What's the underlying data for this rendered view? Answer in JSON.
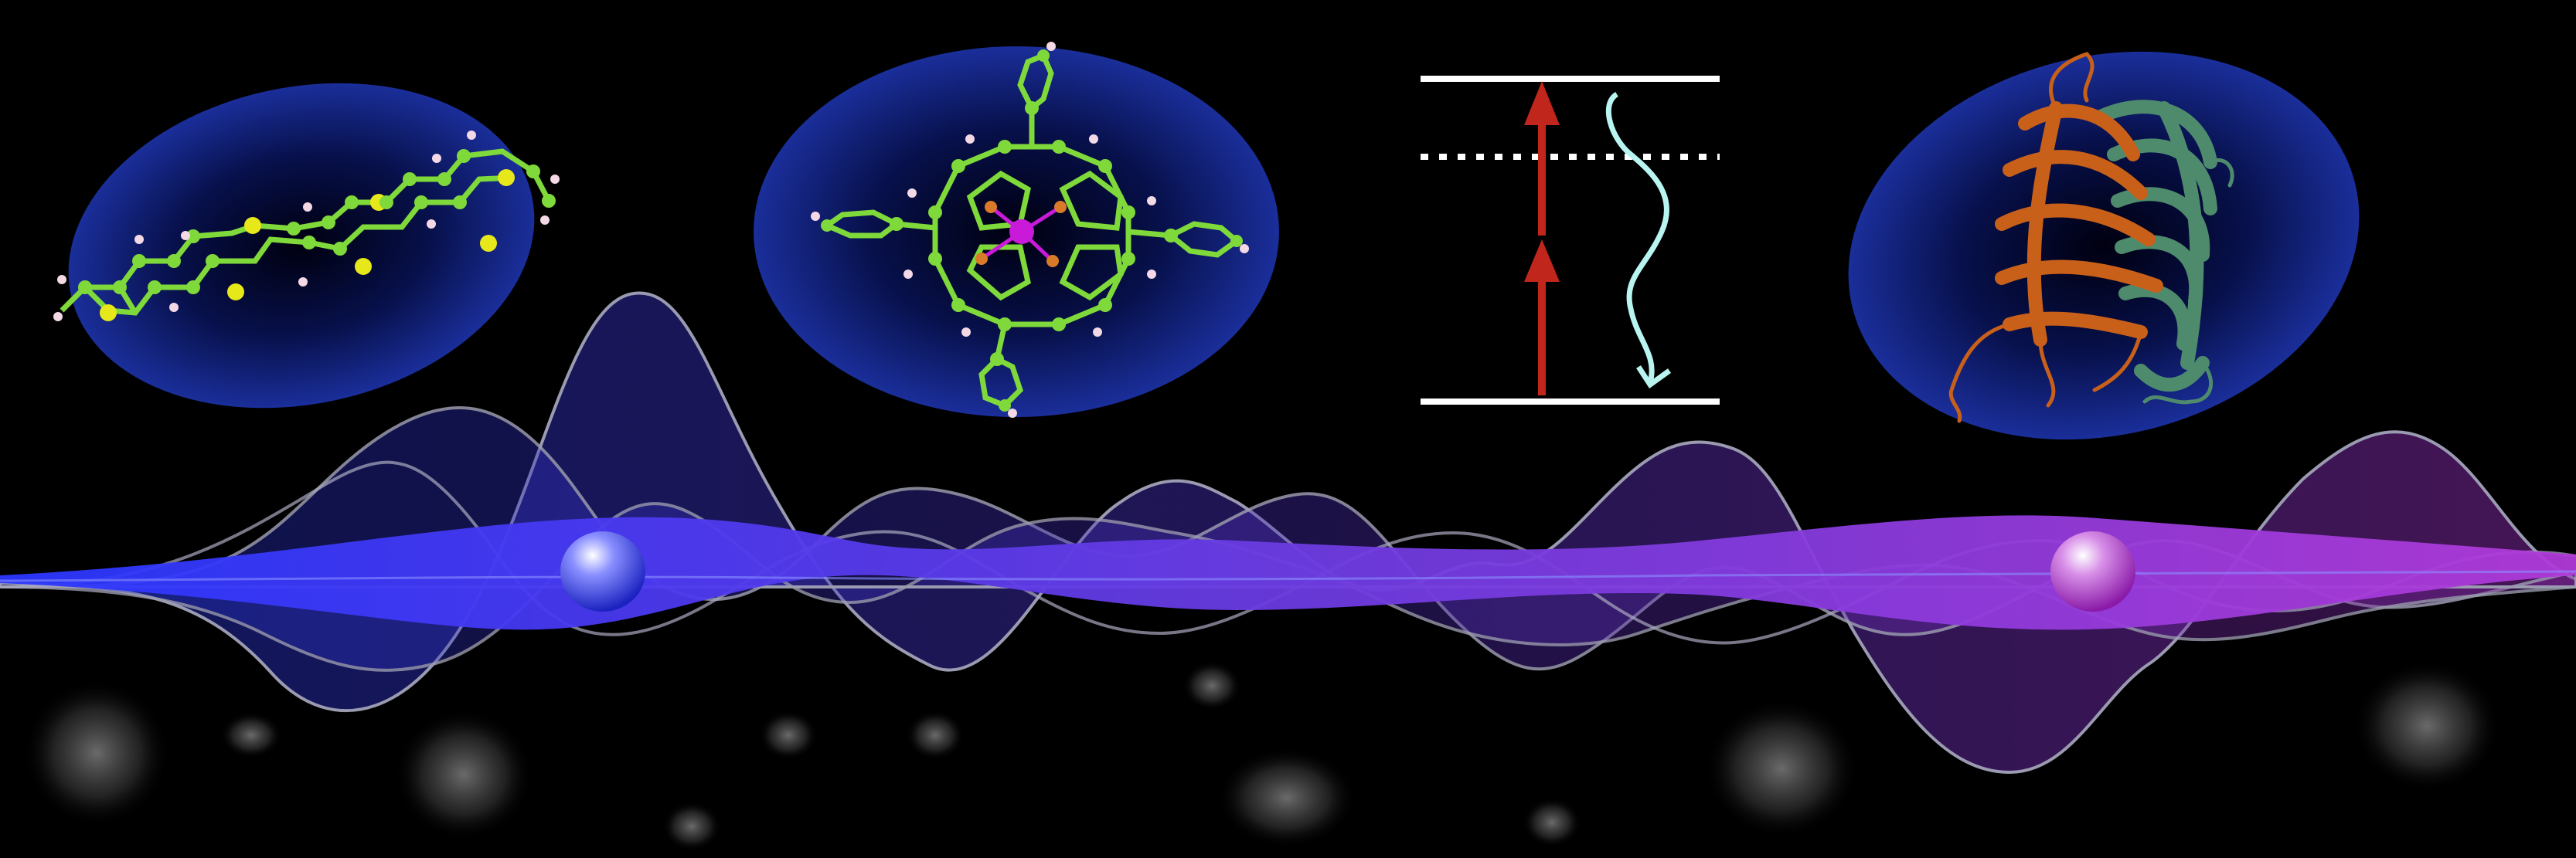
{
  "scene": {
    "type": "scientific-illustration",
    "background_color": "#000000",
    "halo_color": "#1a2e9a",
    "molecule_bond_color": "#7fd93a",
    "sulfur_atom_color": "#e6e81a",
    "hydrogen_atom_color": "#f3d8e6",
    "nitrogen_atom_color": "#d87a2a",
    "metal_atom_color": "#c81ad8",
    "excitation_arrow_color": "#c0261b",
    "emission_arrow_color": "#b8f5f0",
    "energy_level_color": "#ffffff",
    "protein_strand_color_1": "#c8601a",
    "protein_strand_color_2": "#4e8a6c",
    "wave_gradient": [
      "#2a37ff",
      "#6b3be0",
      "#b03ad8"
    ],
    "particle_colors": [
      "#5a64ff",
      "#c860d8"
    ],
    "panels": [
      {
        "name": "fused-thiophene-molecule",
        "icon": "molecule-icon"
      },
      {
        "name": "metalloporphyrin-molecule",
        "icon": "porphyrin-icon"
      },
      {
        "name": "two-photon-energy-diagram",
        "icon": "energy-level-icon"
      },
      {
        "name": "fluorescent-protein-structure",
        "icon": "protein-icon"
      }
    ],
    "wave_particles": 2,
    "background_bubbles": 12
  }
}
